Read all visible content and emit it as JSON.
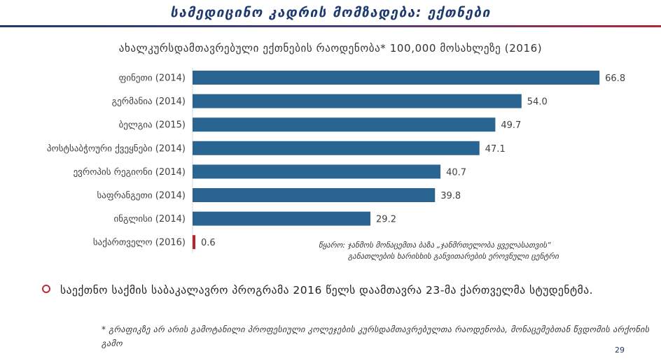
{
  "page": {
    "title": "სამედიცინო კადრის მომზადება: ექთნები",
    "source_line1": "წყარო: ჯანმოს მონაცემთა ბაზა „ჯანმრთელობა ყველასათვის“",
    "source_line2": "განათლების ხარისხის განვითარების ეროვნული ცენტრი",
    "bullet_text": "საექთნო საქმის საბაკალავრო პროგრამა 2016 წელს დაამთავრა 23-მა  ქართველმა სტუდენტმა.",
    "footnote": "* გრაფიკზე არ არის გამოტანილი პროფესიული კოლეჯების კურსდამთავრებულთა რაოდენობა, მონაცემებთან წვდომის არქონის გამო",
    "page_number": "29"
  },
  "colors": {
    "bar": "#2a6490",
    "highlight_bar": "#c0202a",
    "title": "#1f3a6e",
    "bullet": "#c0283d"
  },
  "chart_data": {
    "type": "bar",
    "orientation": "horizontal",
    "title": "ახალკურსდამთავრებული ექთნების რაოდენობა* 100,000 მოსახლეზე (2016)",
    "categories": [
      "ფინეთი (2014)",
      "გერმანია (2014)",
      "ბელგია (2015)",
      "პოსტსაბჭოური ქვეყნები (2014)",
      "ევროპის რეგიონი (2014)",
      "საფრანგეთი (2014)",
      "ინგლისი (2014)",
      "საქართველო (2016)"
    ],
    "values": [
      66.8,
      54.0,
      49.7,
      47.1,
      40.7,
      39.8,
      29.2,
      0.6
    ],
    "value_labels": [
      "66.8",
      "54.0",
      "49.7",
      "47.1",
      "40.7",
      "39.8",
      "29.2",
      "0.6"
    ],
    "highlight_index": 7,
    "xlim": [
      0,
      70
    ],
    "xlabel": "",
    "ylabel": ""
  }
}
